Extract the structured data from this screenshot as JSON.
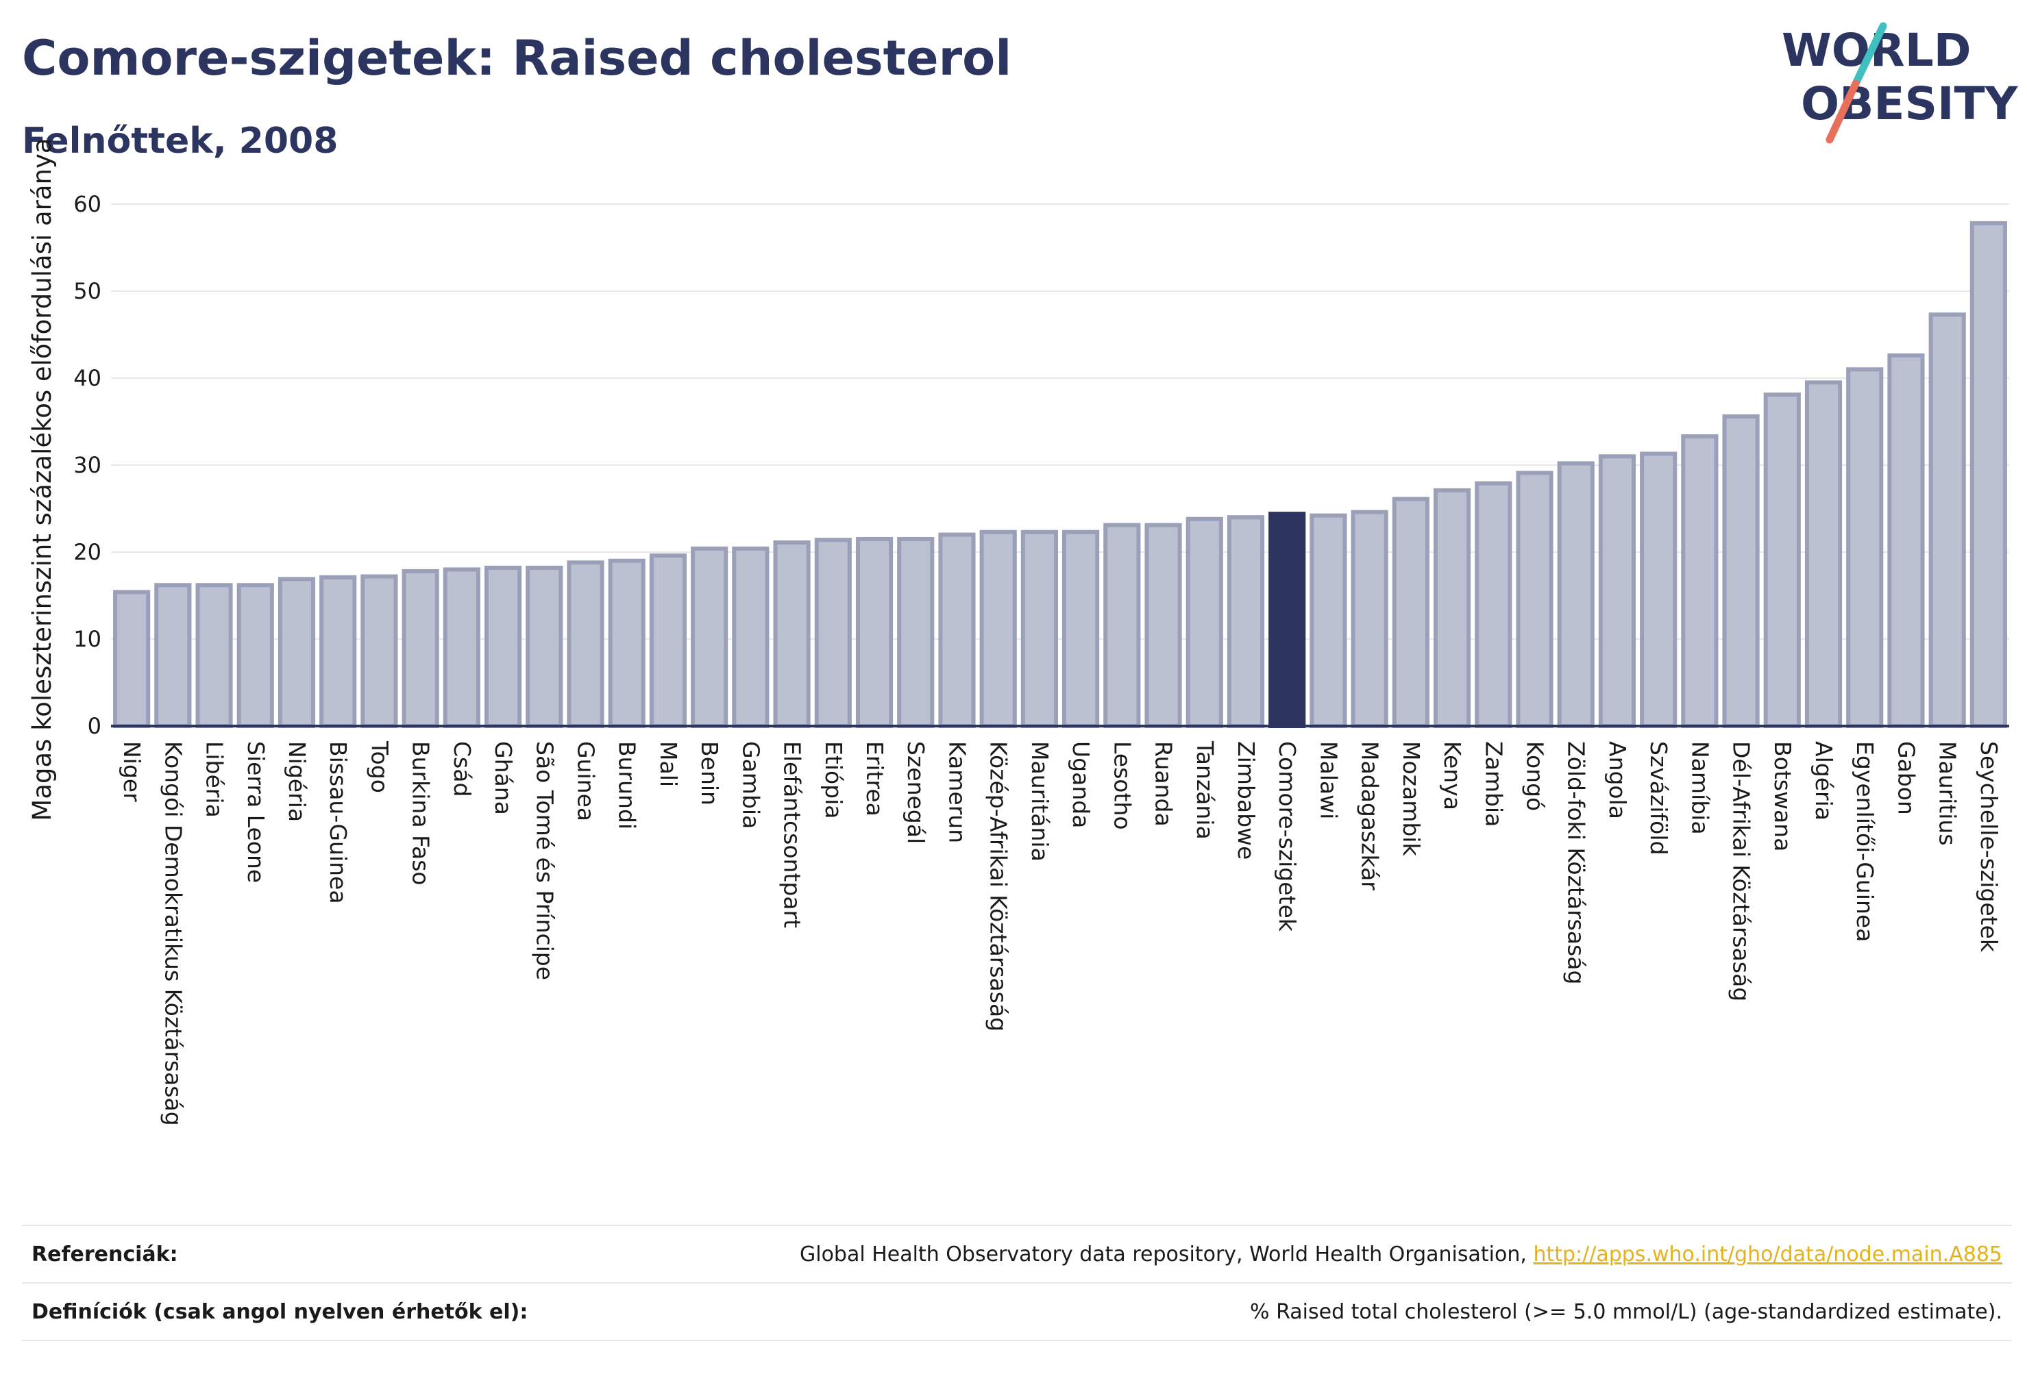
{
  "header": {
    "title": "Comore-szigetek: Raised cholesterol",
    "subtitle": "Felnőttek, 2008"
  },
  "logo": {
    "line1": "WORLD",
    "line2": "OBESITY"
  },
  "colors": {
    "title": "#2c3560",
    "bar_fill": "#bcc1d1",
    "bar_stroke": "#9aa0b8",
    "highlight": "#2c3560",
    "grid": "#e6e8ee",
    "axis": "#2c3560",
    "link": "#e3b21c",
    "logo_teal": "#3fbfbf",
    "logo_coral": "#e8705a"
  },
  "chart_data": {
    "type": "bar",
    "title": "Comore-szigetek: Raised cholesterol",
    "subtitle": "Felnőttek, 2008",
    "ylabel": "Magas koleszterinszint százalékos előfordulási aránya",
    "xlabel": "",
    "ylim": [
      0,
      60
    ],
    "yticks": [
      0,
      10,
      20,
      30,
      40,
      50,
      60
    ],
    "grid": true,
    "highlight": "Comore-szigetek",
    "categories": [
      "Niger",
      "Kongói Demokratikus Köztársaság",
      "Libéria",
      "Sierra Leone",
      "Nigéria",
      "Bissau-Guinea",
      "Togo",
      "Burkina Faso",
      "Csád",
      "Ghána",
      "São Tomé és Príncipe",
      "Guinea",
      "Burundi",
      "Mali",
      "Benin",
      "Gambia",
      "Elefántcsontpart",
      "Etiópia",
      "Eritrea",
      "Szenegál",
      "Kamerun",
      "Közép-Afrikai Köztársaság",
      "Mauritánia",
      "Uganda",
      "Lesotho",
      "Ruanda",
      "Tanzánia",
      "Zimbabwe",
      "Comore-szigetek",
      "Malawi",
      "Madagaszkár",
      "Mozambik",
      "Kenya",
      "Zambia",
      "Kongó",
      "Zöld-foki Köztársaság",
      "Angola",
      "Szváziföld",
      "Namíbia",
      "Dél-Afrikai Köztársaság",
      "Botswana",
      "Algéria",
      "Egyenlítői-Guinea",
      "Gabon",
      "Mauritius",
      "Seychelle-szigetek"
    ],
    "values": [
      15.4,
      16.2,
      16.2,
      16.2,
      16.9,
      17.1,
      17.2,
      17.8,
      18.0,
      18.2,
      18.2,
      18.8,
      19.0,
      19.6,
      20.4,
      20.4,
      21.1,
      21.4,
      21.5,
      21.5,
      22.0,
      22.3,
      22.3,
      22.3,
      23.1,
      23.1,
      23.8,
      24.0,
      24.4,
      24.2,
      24.6,
      26.1,
      27.1,
      27.9,
      29.1,
      30.2,
      31.0,
      31.3,
      33.3,
      35.6,
      38.1,
      39.5,
      41.0,
      42.6,
      47.3,
      57.8
    ]
  },
  "footer": {
    "references_label": "Referenciák:",
    "references_text": "Global Health Observatory data repository, World Health Organisation,",
    "references_link": "http://apps.who.int/gho/data/node.main.A885",
    "definitions_label": "Definíciók (csak angol nyelven érhetők el):",
    "definitions_text": "% Raised total cholesterol (>= 5.0 mmol/L) (age-standardized estimate)."
  }
}
